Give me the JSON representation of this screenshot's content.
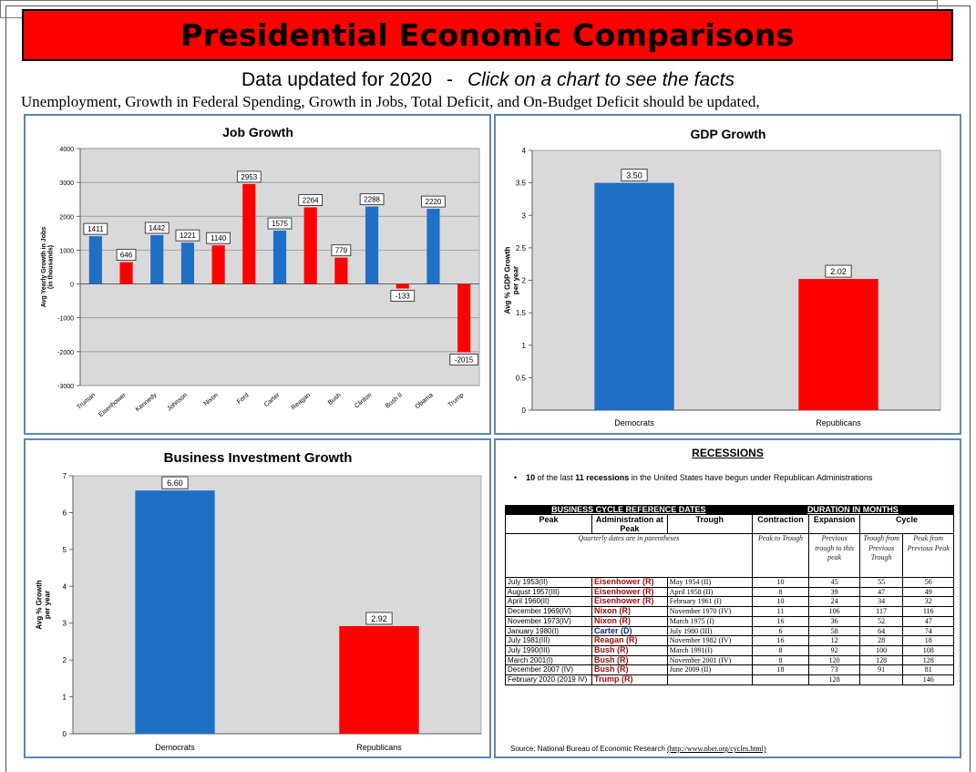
{
  "header": {
    "title": "Presidential Economic Comparisons",
    "updated": "Data updated for 2020",
    "separator": "-",
    "cta": "Click on a chart to see the facts",
    "note": "Unemployment, Growth in Federal Spending, Growth in Jobs, Total Deficit, and On-Budget Deficit should be updated,"
  },
  "colors": {
    "democrat": "#1f6fc6",
    "republican": "#ff0000",
    "plot_bg": "#d9d9d9",
    "banner": "#ff0000",
    "panel_border": "#5d86b6"
  },
  "chart_data": [
    {
      "type": "bar",
      "title": "Job Growth",
      "ylabel": "Avg Yearly Growth in Jobs (in thousands)",
      "ylim": [
        -3000,
        4000
      ],
      "yticks": [
        4000,
        3000,
        2000,
        1000,
        0,
        -1000,
        -2000,
        -3000
      ],
      "ytick_labels": [
        "4000",
        "3000",
        "2000",
        "1000",
        "0",
        "-1000",
        "-2000",
        "-3000"
      ],
      "grid": true,
      "categories": [
        "Truman",
        "Eisenhower",
        "Kennedy",
        "Johnson",
        "Nixon",
        "Ford",
        "Carter",
        "Reagan",
        "Bush",
        "Clinton",
        "Bush II",
        "Obama",
        "Trump"
      ],
      "values": [
        1411,
        646,
        1442,
        1221,
        1140,
        2953,
        1575,
        2264,
        779,
        2288,
        -133,
        2220,
        -2015
      ],
      "labels": [
        "1411",
        "646",
        "1442",
        "1221",
        "1140",
        "2953",
        "1575",
        "2264",
        "779",
        "2288",
        "-133",
        "2220",
        "-2015"
      ],
      "party": [
        "D",
        "R",
        "D",
        "D",
        "R",
        "R",
        "D",
        "R",
        "R",
        "D",
        "R",
        "D",
        "R"
      ]
    },
    {
      "type": "bar",
      "title": "GDP Growth",
      "ylabel": "Avg % GDP Growth per year",
      "ylim": [
        0,
        4
      ],
      "yticks": [
        0,
        0.5,
        1,
        1.5,
        2,
        2.5,
        3,
        3.5,
        4
      ],
      "ytick_labels": [
        "0",
        "0.5",
        "1",
        "1.5",
        "2",
        "2.5",
        "3",
        "3.5",
        "4"
      ],
      "grid": false,
      "categories": [
        "Democrats",
        "Republicans"
      ],
      "values": [
        3.5,
        2.02
      ],
      "labels": [
        "3.50",
        "2.02"
      ],
      "party": [
        "D",
        "R"
      ]
    },
    {
      "type": "bar",
      "title": "Business Investment Growth",
      "ylabel": "Avg % Growth per year",
      "ylim": [
        0,
        7
      ],
      "yticks": [
        0,
        1,
        2,
        3,
        4,
        5,
        6,
        7
      ],
      "ytick_labels": [
        "0",
        "1",
        "2",
        "3",
        "4",
        "5",
        "6",
        "7"
      ],
      "grid": false,
      "categories": [
        "Democrats",
        "Republicans"
      ],
      "values": [
        6.6,
        2.92
      ],
      "labels": [
        "6.60",
        "2.92"
      ],
      "party": [
        "D",
        "R"
      ]
    },
    {
      "type": "table",
      "title": "RECESSIONS",
      "bullet_parts": [
        "10",
        " of the last ",
        "11 recessions",
        " in the United States have begun under Republican Administrations"
      ],
      "group_headers": [
        "BUSINESS CYCLE REFERENCE DATES",
        "DURATION IN MONTHS"
      ],
      "columns": [
        "Peak",
        "Administration at Peak",
        "Trough",
        "Contraction",
        "Expansion",
        "Cycle"
      ],
      "subnotes": {
        "quarterly": "Quarterly dates are in parentheses",
        "contraction": "Peak to Trough",
        "expansion": "Previous trough to this peak",
        "cycle_trough": "Trough from Previous Trough",
        "cycle_peak": "Peak from Previous Peak"
      },
      "rows": [
        [
          "July 1953(II)",
          "Eisenhower (R)",
          "May 1954 (II)",
          "10",
          "45",
          "55",
          "56"
        ],
        [
          "August 1957(III)",
          "Eisenhower (R)",
          "April 1958 (II)",
          "8",
          "39",
          "47",
          "49"
        ],
        [
          "April 1960(II)",
          "Eisenhower (R)",
          "February 1961 (I)",
          "10",
          "24",
          "34",
          "32"
        ],
        [
          "December 1969(IV)",
          "Nixon (R)",
          "November 1970 (IV)",
          "11",
          "106",
          "117",
          "116"
        ],
        [
          "November 1973(IV)",
          "Nixon (R)",
          "March 1975 (I)",
          "16",
          "36",
          "52",
          "47"
        ],
        [
          "January 1980(I)",
          "Carter (D)",
          "July 1980 (III)",
          "6",
          "58",
          "64",
          "74"
        ],
        [
          "July 1981(III)",
          "Reagan (R)",
          "November 1982 (IV)",
          "16",
          "12",
          "28",
          "18"
        ],
        [
          "July 1990(III)",
          "Bush (R)",
          "March 1991(I)",
          "8",
          "92",
          "100",
          "108"
        ],
        [
          "March 2001(I)",
          "Bush (R)",
          "November 2001 (IV)",
          "8",
          "120",
          "128",
          "128"
        ],
        [
          "December 2007 (IV)",
          "Bush (R)",
          "June 2009 (II)",
          "18",
          "73",
          "91",
          "81"
        ],
        [
          "February 2020 (2019 IV)",
          "Trump (R)",
          "",
          "",
          "128",
          "",
          "146"
        ]
      ],
      "source": "Source: National Bureau of Economic Research",
      "source_link": "(http://www.nber.org/cycles.html)"
    }
  ]
}
